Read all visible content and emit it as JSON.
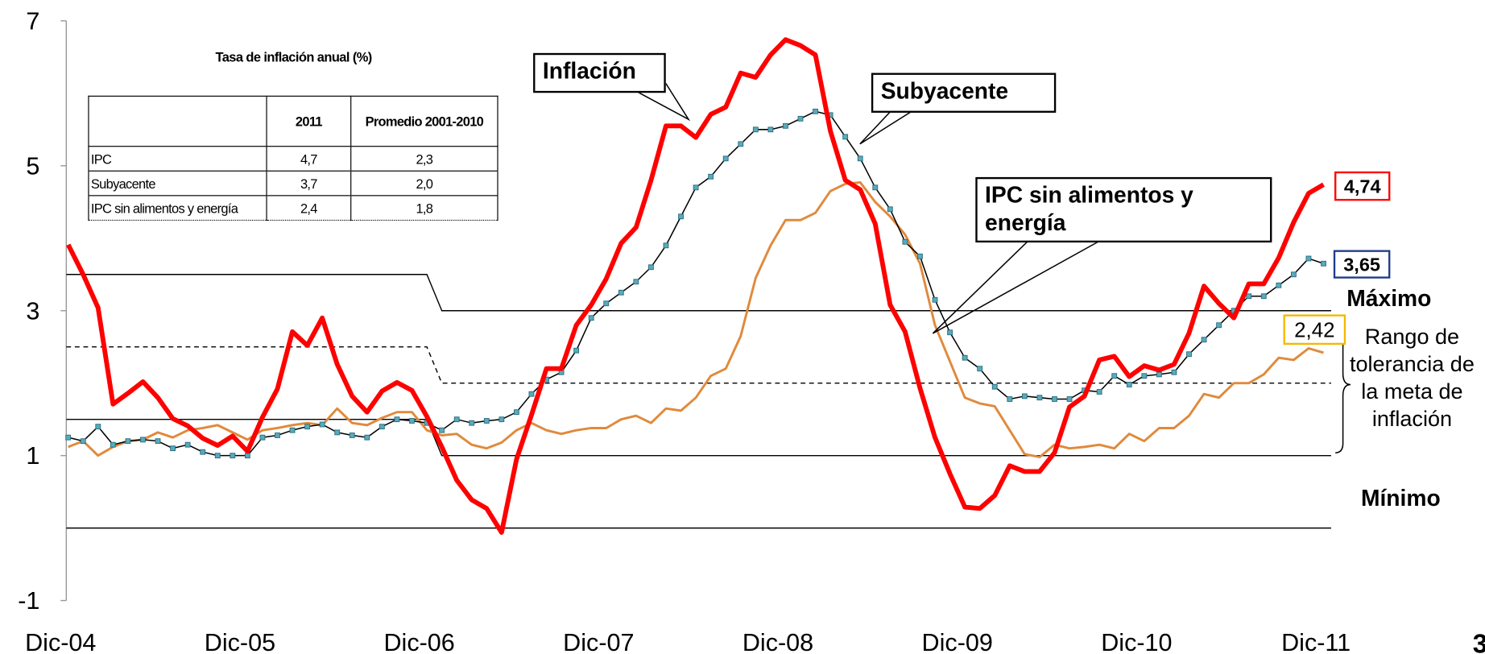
{
  "chart_data": {
    "type": "line",
    "categories": [
      "Dic-04",
      null,
      null,
      null,
      null,
      null,
      null,
      null,
      null,
      null,
      null,
      null,
      "Dic-05",
      null,
      null,
      null,
      null,
      null,
      null,
      null,
      null,
      null,
      null,
      null,
      "Dic-06",
      null,
      null,
      null,
      null,
      null,
      null,
      null,
      null,
      null,
      null,
      null,
      "Dic-07",
      null,
      null,
      null,
      null,
      null,
      null,
      null,
      null,
      null,
      null,
      null,
      "Dic-08",
      null,
      null,
      null,
      null,
      null,
      null,
      null,
      null,
      null,
      null,
      null,
      "Dic-09",
      null,
      null,
      null,
      null,
      null,
      null,
      null,
      null,
      null,
      null,
      null,
      "Dic-10",
      null,
      null,
      null,
      null,
      null,
      null,
      null,
      null,
      null,
      null,
      null,
      "Dic-11"
    ],
    "ylim": [
      -1,
      7
    ],
    "yticks": [
      -1,
      1,
      3,
      5,
      7
    ],
    "series": [
      {
        "name": "Inflación",
        "color": "#ff0000",
        "label_color": "#ff0000",
        "values": [
          3.91,
          3.5,
          3.04,
          1.71,
          1.86,
          2.02,
          1.8,
          1.51,
          1.41,
          1.24,
          1.14,
          1.27,
          1.06,
          1.53,
          1.92,
          2.71,
          2.52,
          2.9,
          2.26,
          1.82,
          1.6,
          1.89,
          2.01,
          1.9,
          1.54,
          1.12,
          0.66,
          0.39,
          0.27,
          -0.06,
          0.95,
          1.56,
          2.2,
          2.2,
          2.8,
          3.08,
          3.44,
          3.93,
          4.15,
          4.8,
          5.55,
          5.55,
          5.39,
          5.71,
          5.81,
          6.28,
          6.22,
          6.53,
          6.74,
          6.66,
          6.53,
          5.48,
          4.8,
          4.67,
          4.2,
          3.08,
          2.71,
          1.93,
          1.25,
          0.75,
          0.29,
          0.27,
          0.45,
          0.86,
          0.78,
          0.78,
          1.04,
          1.67,
          1.82,
          2.32,
          2.37,
          2.09,
          2.24,
          2.18,
          2.26,
          2.69,
          3.34,
          3.1,
          2.9,
          3.37,
          3.37,
          3.73,
          4.22,
          4.62,
          4.74
        ],
        "value_labels": [
          null,
          null,
          null,
          null,
          null,
          null,
          null,
          null,
          null,
          null,
          null,
          null,
          null,
          null,
          null,
          null,
          null,
          null,
          null,
          null,
          null,
          null,
          null,
          null,
          null,
          null,
          null,
          null,
          null,
          null,
          null,
          null,
          null,
          null,
          null,
          null,
          null,
          null,
          null,
          null,
          null,
          null,
          null,
          null,
          null,
          null,
          null,
          null,
          null,
          null,
          null,
          null,
          null,
          null,
          null,
          null,
          null,
          null,
          null,
          null,
          null,
          null,
          null,
          null,
          null,
          null,
          null,
          null,
          null,
          null,
          null,
          null,
          null,
          null,
          null,
          null,
          null,
          null,
          null,
          null,
          null,
          null,
          null,
          null,
          "4,74"
        ]
      },
      {
        "name": "Subyacente",
        "color": "#000000",
        "marker_color": "#5aaabb",
        "label_color": "#1f3c88",
        "values": [
          1.25,
          1.2,
          1.4,
          1.15,
          1.2,
          1.22,
          1.2,
          1.1,
          1.15,
          1.05,
          1.0,
          1.0,
          1.0,
          1.25,
          1.28,
          1.35,
          1.4,
          1.43,
          1.32,
          1.28,
          1.25,
          1.4,
          1.5,
          1.48,
          1.45,
          1.35,
          1.5,
          1.45,
          1.48,
          1.5,
          1.6,
          1.85,
          2.05,
          2.15,
          2.45,
          2.9,
          3.1,
          3.25,
          3.4,
          3.6,
          3.9,
          4.3,
          4.7,
          4.85,
          5.1,
          5.3,
          5.5,
          5.5,
          5.55,
          5.65,
          5.75,
          5.7,
          5.4,
          5.1,
          4.7,
          4.4,
          3.95,
          3.75,
          3.15,
          2.7,
          2.35,
          2.2,
          1.95,
          1.78,
          1.82,
          1.8,
          1.78,
          1.78,
          1.9,
          1.88,
          2.1,
          1.98,
          2.1,
          2.12,
          2.15,
          2.4,
          2.6,
          2.8,
          3.0,
          3.2,
          3.2,
          3.35,
          3.5,
          3.72,
          3.65
        ],
        "value_labels": [
          null,
          null,
          null,
          null,
          null,
          null,
          null,
          null,
          null,
          null,
          null,
          null,
          null,
          null,
          null,
          null,
          null,
          null,
          null,
          null,
          null,
          null,
          null,
          null,
          null,
          null,
          null,
          null,
          null,
          null,
          null,
          null,
          null,
          null,
          null,
          null,
          null,
          null,
          null,
          null,
          null,
          null,
          null,
          null,
          null,
          null,
          null,
          null,
          null,
          null,
          null,
          null,
          null,
          null,
          null,
          null,
          null,
          null,
          null,
          null,
          null,
          null,
          null,
          null,
          null,
          null,
          null,
          null,
          null,
          null,
          null,
          null,
          null,
          null,
          null,
          null,
          null,
          null,
          null,
          null,
          null,
          null,
          null,
          null,
          "3,65"
        ]
      },
      {
        "name": "IPC sin alimentos y energía",
        "color": "#e08a3c",
        "label_color": "#f5b800",
        "values": [
          1.12,
          1.2,
          1.0,
          1.12,
          1.2,
          1.22,
          1.32,
          1.25,
          1.35,
          1.38,
          1.42,
          1.32,
          1.22,
          1.35,
          1.38,
          1.42,
          1.45,
          1.42,
          1.65,
          1.45,
          1.42,
          1.52,
          1.6,
          1.6,
          1.35,
          1.28,
          1.3,
          1.15,
          1.1,
          1.18,
          1.35,
          1.45,
          1.35,
          1.3,
          1.35,
          1.38,
          1.38,
          1.5,
          1.55,
          1.45,
          1.65,
          1.62,
          1.8,
          2.1,
          2.2,
          2.65,
          3.45,
          3.9,
          4.25,
          4.25,
          4.35,
          4.65,
          4.75,
          4.77,
          4.5,
          4.3,
          4.05,
          3.65,
          2.8,
          2.3,
          1.8,
          1.72,
          1.68,
          1.35,
          1.02,
          0.98,
          1.15,
          1.1,
          1.12,
          1.15,
          1.1,
          1.3,
          1.2,
          1.38,
          1.38,
          1.55,
          1.85,
          1.8,
          2.0,
          2.0,
          2.12,
          2.35,
          2.32,
          2.48,
          2.42
        ],
        "value_labels": [
          null,
          null,
          null,
          null,
          null,
          null,
          null,
          null,
          null,
          null,
          null,
          null,
          null,
          null,
          null,
          null,
          null,
          null,
          null,
          null,
          null,
          null,
          null,
          null,
          null,
          null,
          null,
          null,
          null,
          null,
          null,
          null,
          null,
          null,
          null,
          null,
          null,
          null,
          null,
          null,
          null,
          null,
          null,
          null,
          null,
          null,
          null,
          null,
          null,
          null,
          null,
          null,
          null,
          null,
          null,
          null,
          null,
          null,
          null,
          null,
          null,
          null,
          null,
          null,
          null,
          null,
          null,
          null,
          null,
          null,
          null,
          null,
          null,
          null,
          null,
          null,
          null,
          null,
          null,
          null,
          null,
          null,
          null,
          null,
          "2,42"
        ]
      }
    ],
    "target": {
      "change_at": "Dic-06",
      "upper": [
        3.5,
        3
      ],
      "center": [
        2.5,
        2
      ],
      "lower": [
        1.5,
        1
      ]
    },
    "annotations": {
      "maximum": "Máximo",
      "range": "Rango de tolerancia de la meta de inflación",
      "minimum": "Mínimo"
    },
    "table": {
      "title": "Tasa de inflación anual (%)",
      "columns": [
        "2011",
        "Promedio 2001-2010"
      ],
      "rows": [
        {
          "label": "IPC",
          "values": [
            "4,7",
            "2,3"
          ]
        },
        {
          "label": "Subyacente",
          "values": [
            "3,7",
            "2,0"
          ]
        },
        {
          "label": "IPC sin alimentos y energía",
          "values": [
            "2,4",
            "1,8"
          ]
        }
      ]
    },
    "page_number": "3"
  }
}
